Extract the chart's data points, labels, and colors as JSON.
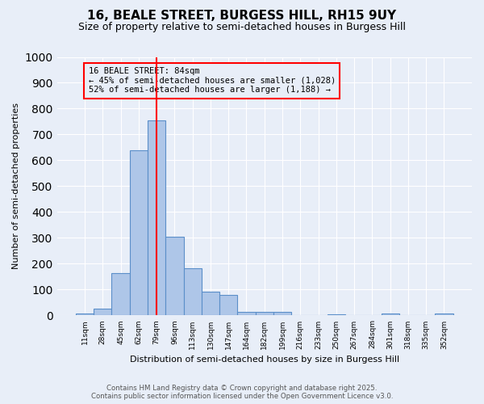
{
  "title": "16, BEALE STREET, BURGESS HILL, RH15 9UY",
  "subtitle": "Size of property relative to semi-detached houses in Burgess Hill",
  "xlabel": "Distribution of semi-detached houses by size in Burgess Hill",
  "ylabel": "Number of semi-detached properties",
  "bin_labels": [
    "11sqm",
    "28sqm",
    "45sqm",
    "62sqm",
    "79sqm",
    "96sqm",
    "113sqm",
    "130sqm",
    "147sqm",
    "164sqm",
    "182sqm",
    "199sqm",
    "216sqm",
    "233sqm",
    "250sqm",
    "267sqm",
    "284sqm",
    "301sqm",
    "318sqm",
    "335sqm",
    "352sqm"
  ],
  "bar_heights": [
    7,
    25,
    163,
    640,
    755,
    305,
    183,
    93,
    78,
    15,
    15,
    13,
    0,
    0,
    5,
    0,
    0,
    7,
    0,
    0,
    7
  ],
  "bar_color": "#aec6e8",
  "bar_edge_color": "#5b8fc9",
  "red_line_x": 4,
  "annotation_title": "16 BEALE STREET: 84sqm",
  "annotation_line1": "← 45% of semi-detached houses are smaller (1,028)",
  "annotation_line2": "52% of semi-detached houses are larger (1,188) →",
  "ylim": [
    0,
    1000
  ],
  "yticks": [
    0,
    100,
    200,
    300,
    400,
    500,
    600,
    700,
    800,
    900,
    1000
  ],
  "footnote1": "Contains HM Land Registry data © Crown copyright and database right 2025.",
  "footnote2": "Contains public sector information licensed under the Open Government Licence v3.0.",
  "background_color": "#e8eef8"
}
